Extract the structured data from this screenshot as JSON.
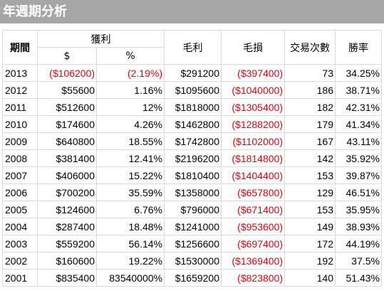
{
  "title": "年週期分析",
  "colors": {
    "title_bg": "#a6a6a6",
    "title_text": "#ffffff",
    "negative": "#e0000a",
    "grid": "#d9d9d9"
  },
  "headers": {
    "period": "期間",
    "profit_group": "獲利",
    "profit_dollar": "$",
    "profit_percent": "%",
    "gross_profit": "毛利",
    "gross_loss": "毛損",
    "trade_count": "交易次數",
    "win_rate": "勝率"
  },
  "rows": [
    {
      "year": "2013",
      "profit": "($106200)",
      "profit_negative": true,
      "profit_pct": "(2.19%)",
      "pct_negative": true,
      "gross_profit": "$291200",
      "gross_loss": "($397400)",
      "trades": "73",
      "win_rate": "34.25%"
    },
    {
      "year": "2012",
      "profit": "$55600",
      "profit_negative": false,
      "profit_pct": "1.16%",
      "pct_negative": false,
      "gross_profit": "$1095600",
      "gross_loss": "($1040000)",
      "trades": "186",
      "win_rate": "38.71%"
    },
    {
      "year": "2011",
      "profit": "$512600",
      "profit_negative": false,
      "profit_pct": "12%",
      "pct_negative": false,
      "gross_profit": "$1818000",
      "gross_loss": "($1305400)",
      "trades": "182",
      "win_rate": "42.31%"
    },
    {
      "year": "2010",
      "profit": "$174600",
      "profit_negative": false,
      "profit_pct": "4.26%",
      "pct_negative": false,
      "gross_profit": "$1462800",
      "gross_loss": "($1288200)",
      "trades": "179",
      "win_rate": "41.34%"
    },
    {
      "year": "2009",
      "profit": "$640800",
      "profit_negative": false,
      "profit_pct": "18.55%",
      "pct_negative": false,
      "gross_profit": "$1742800",
      "gross_loss": "($1102000)",
      "trades": "167",
      "win_rate": "43.11%"
    },
    {
      "year": "2008",
      "profit": "$381400",
      "profit_negative": false,
      "profit_pct": "12.41%",
      "pct_negative": false,
      "gross_profit": "$2196200",
      "gross_loss": "($1814800)",
      "trades": "142",
      "win_rate": "35.92%"
    },
    {
      "year": "2007",
      "profit": "$406000",
      "profit_negative": false,
      "profit_pct": "15.22%",
      "pct_negative": false,
      "gross_profit": "$1810400",
      "gross_loss": "($1404400)",
      "trades": "153",
      "win_rate": "39.87%"
    },
    {
      "year": "2006",
      "profit": "$700200",
      "profit_negative": false,
      "profit_pct": "35.59%",
      "pct_negative": false,
      "gross_profit": "$1358000",
      "gross_loss": "($657800)",
      "trades": "129",
      "win_rate": "46.51%"
    },
    {
      "year": "2005",
      "profit": "$124600",
      "profit_negative": false,
      "profit_pct": "6.76%",
      "pct_negative": false,
      "gross_profit": "$796000",
      "gross_loss": "($671400)",
      "trades": "153",
      "win_rate": "35.95%"
    },
    {
      "year": "2004",
      "profit": "$287400",
      "profit_negative": false,
      "profit_pct": "18.48%",
      "pct_negative": false,
      "gross_profit": "$1241000",
      "gross_loss": "($953600)",
      "trades": "149",
      "win_rate": "38.93%"
    },
    {
      "year": "2003",
      "profit": "$559200",
      "profit_negative": false,
      "profit_pct": "56.14%",
      "pct_negative": false,
      "gross_profit": "$1256600",
      "gross_loss": "($697400)",
      "trades": "172",
      "win_rate": "44.19%"
    },
    {
      "year": "2002",
      "profit": "$160600",
      "profit_negative": false,
      "profit_pct": "19.22%",
      "pct_negative": false,
      "gross_profit": "$1530000",
      "gross_loss": "($1369400)",
      "trades": "192",
      "win_rate": "37.5%"
    },
    {
      "year": "2001",
      "profit": "$835400",
      "profit_negative": false,
      "profit_pct": "83540000%",
      "pct_negative": false,
      "gross_profit": "$1659200",
      "gross_loss": "($823800)",
      "trades": "140",
      "win_rate": "51.43%"
    }
  ]
}
